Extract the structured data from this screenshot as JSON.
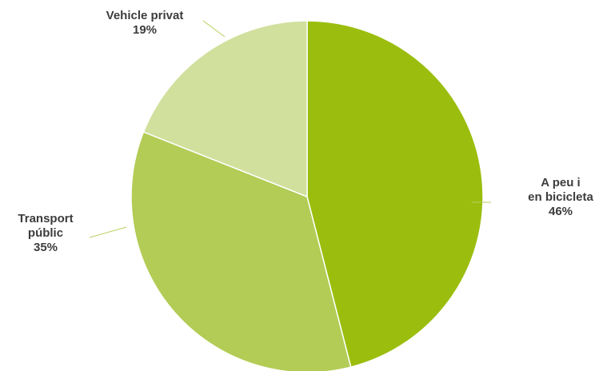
{
  "chart_data": {
    "type": "pie",
    "start_angle_deg": 0,
    "direction": "clockwise",
    "slices": [
      {
        "label_lines": [
          "A peu i",
          "en bicicleta"
        ],
        "value": 46,
        "value_label": "46%",
        "color": "#9bbe0e"
      },
      {
        "label_lines": [
          "Transport",
          "públic"
        ],
        "value": 35,
        "value_label": "35%",
        "color": "#b2cc55"
      },
      {
        "label_lines": [
          "Vehicle privat"
        ],
        "value": 19,
        "value_label": "19%",
        "color": "#d1e09d"
      }
    ],
    "legend": "none"
  }
}
